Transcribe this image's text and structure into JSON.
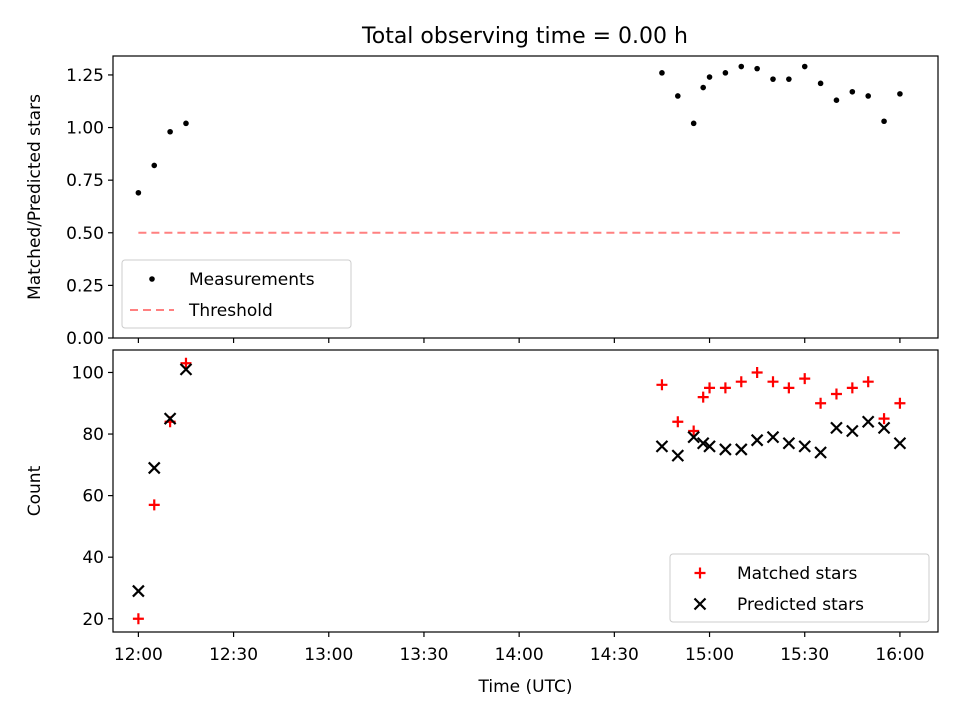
{
  "title": "Total observing time = 0.00 h",
  "chart_data": [
    {
      "type": "scatter",
      "ylabel": "Matched/Predicted stars",
      "xlabel": "",
      "ylim": [
        0.0,
        1.34
      ],
      "yticks": [
        0.0,
        0.25,
        0.5,
        0.75,
        1.0,
        1.25
      ],
      "ytick_labels": [
        "0.00",
        "0.25",
        "0.50",
        "0.75",
        "1.00",
        "1.25"
      ],
      "grid": false,
      "legend_position": "lower-left",
      "series": [
        {
          "name": "Measurements",
          "marker": "dot",
          "color": "#000000",
          "x": [
            "12:00",
            "12:05",
            "12:10",
            "12:15",
            "14:45",
            "14:50",
            "14:55",
            "14:58",
            "15:00",
            "15:05",
            "15:10",
            "15:15",
            "15:20",
            "15:25",
            "15:30",
            "15:35",
            "15:40",
            "15:45",
            "15:50",
            "15:55",
            "16:00"
          ],
          "y": [
            0.69,
            0.82,
            0.98,
            1.02,
            1.26,
            1.15,
            1.02,
            1.19,
            1.24,
            1.26,
            1.29,
            1.28,
            1.23,
            1.23,
            1.29,
            1.21,
            1.13,
            1.17,
            1.15,
            1.03,
            1.16
          ]
        },
        {
          "name": "Threshold",
          "style": "dashed-line",
          "color": "#ff8080",
          "x": [
            "12:00",
            "16:00"
          ],
          "y": [
            0.5,
            0.5
          ]
        }
      ]
    },
    {
      "type": "scatter",
      "ylabel": "Count",
      "xlabel": "Time (UTC)",
      "ylim": [
        15.7,
        107.3
      ],
      "yticks": [
        20,
        40,
        60,
        80,
        100
      ],
      "ytick_labels": [
        "20",
        "40",
        "60",
        "80",
        "100"
      ],
      "xlim": [
        "11:52",
        "16:12"
      ],
      "xticks": [
        "12:00",
        "12:30",
        "13:00",
        "13:30",
        "14:00",
        "14:30",
        "15:00",
        "15:30",
        "16:00"
      ],
      "xtick_labels": [
        "12:00",
        "12:30",
        "13:00",
        "13:30",
        "14:00",
        "14:30",
        "15:00",
        "15:30",
        "16:00"
      ],
      "grid": false,
      "legend_position": "lower-right",
      "series": [
        {
          "name": "Matched stars",
          "marker": "plus",
          "color": "#ff0000",
          "x": [
            "12:00",
            "12:05",
            "12:10",
            "12:15",
            "14:45",
            "14:50",
            "14:55",
            "14:58",
            "15:00",
            "15:05",
            "15:10",
            "15:15",
            "15:20",
            "15:25",
            "15:30",
            "15:35",
            "15:40",
            "15:45",
            "15:50",
            "15:55",
            "16:00"
          ],
          "y": [
            20,
            57,
            84,
            103,
            96,
            84,
            81,
            92,
            95,
            95,
            97,
            100,
            97,
            95,
            98,
            90,
            93,
            95,
            97,
            85,
            90
          ]
        },
        {
          "name": "Predicted stars",
          "marker": "x",
          "color": "#000000",
          "x": [
            "12:00",
            "12:05",
            "12:10",
            "12:15",
            "14:45",
            "14:50",
            "14:55",
            "14:58",
            "15:00",
            "15:05",
            "15:10",
            "15:15",
            "15:20",
            "15:25",
            "15:30",
            "15:35",
            "15:40",
            "15:45",
            "15:50",
            "15:55",
            "16:00"
          ],
          "y": [
            29,
            69,
            85,
            101,
            76,
            73,
            79,
            77,
            76,
            75,
            75,
            78,
            79,
            77,
            76,
            74,
            82,
            81,
            84,
            82,
            77
          ]
        }
      ]
    }
  ]
}
